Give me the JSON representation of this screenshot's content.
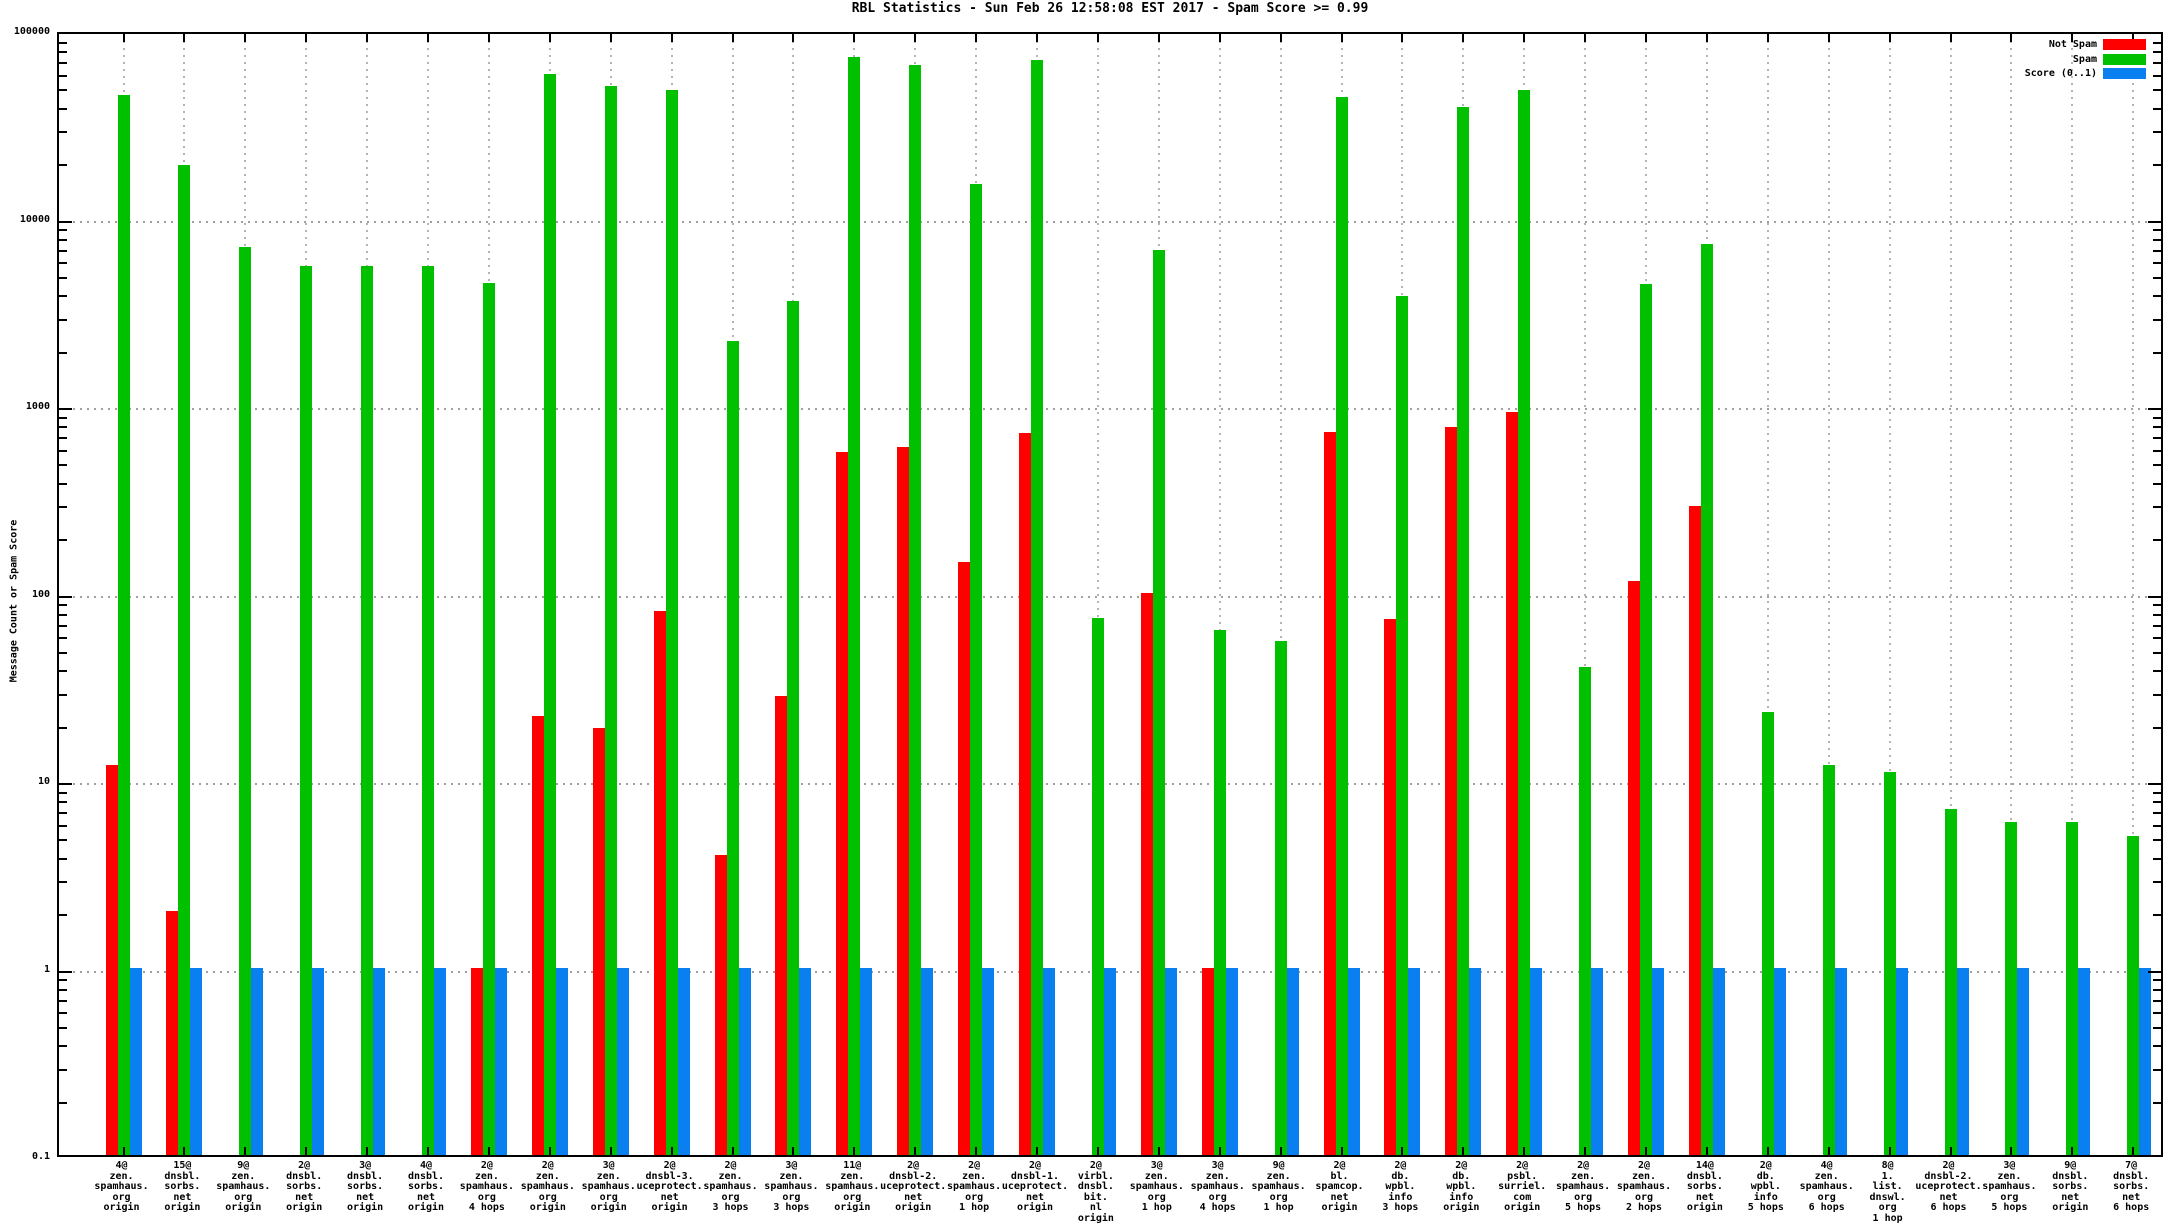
{
  "title": "RBL Statistics - Sun Feb 26 12:58:08 EST 2017 - Spam Score >= 0.99",
  "y_axis": {
    "label": "Message Count or Spam Score",
    "tick_labels": [
      "100000",
      "10000",
      "1000",
      "100",
      "10",
      "1",
      "0.1"
    ]
  },
  "legend": [
    {
      "label": "Not Spam",
      "color": "#ff0000"
    },
    {
      "label": "Spam",
      "color": "#00c000"
    },
    {
      "label": "Score (0..1)",
      "color": "#0a80f0"
    }
  ],
  "colors": {
    "not_spam": "#ff0000",
    "spam": "#00c000",
    "score": "#0a80f0",
    "grid": "#a0a0a0",
    "border": "#000000"
  },
  "chart_data": {
    "type": "bar",
    "scale": "log",
    "ylim": [
      0.1,
      100000
    ],
    "ylabel": "Message Count or Spam Score",
    "grid": true,
    "legend_position": "top-right",
    "series_names": [
      "Not Spam",
      "Spam",
      "Score (0..1)"
    ],
    "groups": [
      {
        "label_lines": [
          "4@",
          "zen.",
          "spamhaus.",
          "org",
          "origin"
        ],
        "not_spam": 12,
        "spam": 45000,
        "score": 1
      },
      {
        "label_lines": [
          "15@",
          "dnsbl.",
          "sorbs.",
          "net",
          "origin"
        ],
        "not_spam": 2,
        "spam": 19000,
        "score": 1
      },
      {
        "label_lines": [
          "9@",
          "zen.",
          "spamhaus.",
          "org",
          "origin"
        ],
        "not_spam": null,
        "spam": 7000,
        "score": 1
      },
      {
        "label_lines": [
          "2@",
          "dnsbl.",
          "sorbs.",
          "net",
          "origin"
        ],
        "not_spam": null,
        "spam": 5500,
        "score": 1
      },
      {
        "label_lines": [
          "3@",
          "dnsbl.",
          "sorbs.",
          "net",
          "origin"
        ],
        "not_spam": null,
        "spam": 5500,
        "score": 1
      },
      {
        "label_lines": [
          "4@",
          "dnsbl.",
          "sorbs.",
          "net",
          "origin"
        ],
        "not_spam": null,
        "spam": 5500,
        "score": 1
      },
      {
        "label_lines": [
          "2@",
          "zen.",
          "spamhaus.",
          "org",
          "4 hops"
        ],
        "not_spam": 1,
        "spam": 4500,
        "score": 1
      },
      {
        "label_lines": [
          "2@",
          "zen.",
          "spamhaus.",
          "org",
          "origin"
        ],
        "not_spam": 22,
        "spam": 58000,
        "score": 1
      },
      {
        "label_lines": [
          "3@",
          "zen.",
          "spamhaus.",
          "org",
          "origin"
        ],
        "not_spam": 19,
        "spam": 50000,
        "score": 1
      },
      {
        "label_lines": [
          "2@",
          "dnsbl-3.",
          "uceprotect.",
          "net",
          "origin"
        ],
        "not_spam": 80,
        "spam": 48000,
        "score": 1
      },
      {
        "label_lines": [
          "2@",
          "zen.",
          "spamhaus.",
          "org",
          "3 hops"
        ],
        "not_spam": 4,
        "spam": 2200,
        "score": 1
      },
      {
        "label_lines": [
          "3@",
          "zen.",
          "spamhaus.",
          "org",
          "3 hops"
        ],
        "not_spam": 28,
        "spam": 3600,
        "score": 1
      },
      {
        "label_lines": [
          "11@",
          "zen.",
          "spamhaus.",
          "org",
          "origin"
        ],
        "not_spam": 560,
        "spam": 72000,
        "score": 1
      },
      {
        "label_lines": [
          "2@",
          "dnsbl-2.",
          "uceprotect.",
          "net",
          "origin"
        ],
        "not_spam": 600,
        "spam": 65000,
        "score": 1
      },
      {
        "label_lines": [
          "2@",
          "zen.",
          "spamhaus.",
          "org",
          "1 hop"
        ],
        "not_spam": 145,
        "spam": 15000,
        "score": 1
      },
      {
        "label_lines": [
          "2@",
          "dnsbl-1.",
          "uceprotect.",
          "net",
          "origin"
        ],
        "not_spam": 710,
        "spam": 69000,
        "score": 1
      },
      {
        "label_lines": [
          "2@",
          "virbl.",
          "dnsbl.",
          "bit.",
          "nl",
          "origin"
        ],
        "not_spam": null,
        "spam": 73,
        "score": 1
      },
      {
        "label_lines": [
          "3@",
          "zen.",
          "spamhaus.",
          "org",
          "1 hop"
        ],
        "not_spam": 100,
        "spam": 6700,
        "score": 1
      },
      {
        "label_lines": [
          "3@",
          "zen.",
          "spamhaus.",
          "org",
          "4 hops"
        ],
        "not_spam": 1,
        "spam": 63,
        "score": 1
      },
      {
        "label_lines": [
          "9@",
          "zen.",
          "spamhaus.",
          "org",
          "1 hop"
        ],
        "not_spam": null,
        "spam": 55,
        "score": 1
      },
      {
        "label_lines": [
          "2@",
          "bl.",
          "spamcop.",
          "net",
          "origin"
        ],
        "not_spam": 720,
        "spam": 44000,
        "score": 1
      },
      {
        "label_lines": [
          "2@",
          "db.",
          "wpbl.",
          "info",
          "3 hops"
        ],
        "not_spam": 72,
        "spam": 3800,
        "score": 1
      },
      {
        "label_lines": [
          "2@",
          "db.",
          "wpbl.",
          "info",
          "origin"
        ],
        "not_spam": 760,
        "spam": 39000,
        "score": 1
      },
      {
        "label_lines": [
          "2@",
          "psbl.",
          "surriel.",
          "com",
          "origin"
        ],
        "not_spam": 920,
        "spam": 48000,
        "score": 1
      },
      {
        "label_lines": [
          "2@",
          "zen.",
          "spamhaus.",
          "org",
          "5 hops"
        ],
        "not_spam": null,
        "spam": 40,
        "score": 1
      },
      {
        "label_lines": [
          "2@",
          "zen.",
          "spamhaus.",
          "org",
          "2 hops"
        ],
        "not_spam": 115,
        "spam": 4400,
        "score": 1
      },
      {
        "label_lines": [
          "14@",
          "dnsbl.",
          "sorbs.",
          "net",
          "origin"
        ],
        "not_spam": 290,
        "spam": 7200,
        "score": 1
      },
      {
        "label_lines": [
          "2@",
          "db.",
          "wpbl.",
          "info",
          "5 hops"
        ],
        "not_spam": null,
        "spam": 23,
        "score": 1
      },
      {
        "label_lines": [
          "4@",
          "zen.",
          "spamhaus.",
          "org",
          "6 hops"
        ],
        "not_spam": null,
        "spam": 12,
        "score": 1
      },
      {
        "label_lines": [
          "8@",
          "1.",
          "list.",
          "dnswl.",
          "org",
          "1 hop"
        ],
        "not_spam": null,
        "spam": 11,
        "score": 1
      },
      {
        "label_lines": [
          "2@",
          "dnsbl-2.",
          "uceprotect.",
          "net",
          "6 hops"
        ],
        "not_spam": null,
        "spam": 7,
        "score": 1
      },
      {
        "label_lines": [
          "3@",
          "zen.",
          "spamhaus.",
          "org",
          "5 hops"
        ],
        "not_spam": null,
        "spam": 6,
        "score": 1
      },
      {
        "label_lines": [
          "9@",
          "dnsbl.",
          "sorbs.",
          "net",
          "origin"
        ],
        "not_spam": null,
        "spam": 6,
        "score": 1
      },
      {
        "label_lines": [
          "7@",
          "dnsbl.",
          "sorbs.",
          "net",
          "6 hops"
        ],
        "not_spam": null,
        "spam": 5,
        "score": 1
      }
    ]
  }
}
